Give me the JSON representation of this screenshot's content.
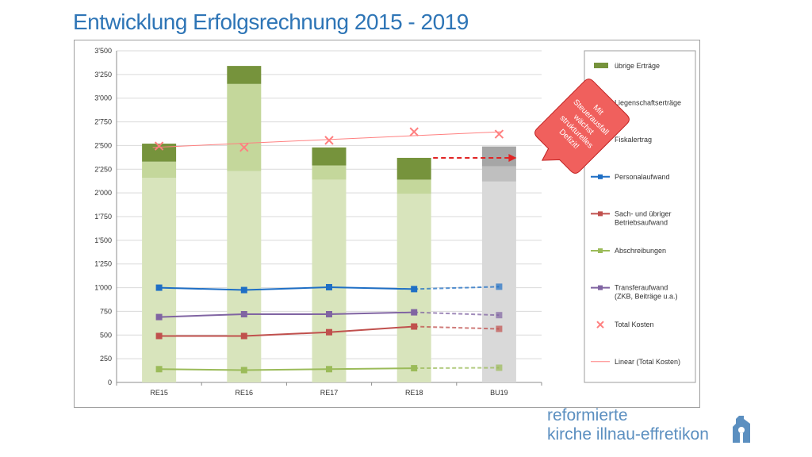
{
  "title": "Entwicklung Erfolgsrechnung 2015 - 2019",
  "brand": {
    "line1": "reformierte",
    "line2a": "kirche",
    "line2b": "illnau-effretikon"
  },
  "colors": {
    "uebrige": "#76933c",
    "liegenschaft": "#c4d79b",
    "fiskal": "#d8e4bc",
    "bu19_top": "#a6a6a6",
    "bu19_mid": "#bfbfbf",
    "bu19_base": "#d9d9d9",
    "personal": "#1f6fc5",
    "sach": "#c0504d",
    "abschr": "#9bbb59",
    "transfer": "#8064a2",
    "total": "#ff8080",
    "callout": "#f0605d",
    "arrow": "#e02424"
  },
  "chart_data": {
    "type": "bar",
    "categories": [
      "RE15",
      "RE16",
      "RE17",
      "RE18",
      "BU19"
    ],
    "ylim": [
      0,
      3500
    ],
    "yticks": [
      "0",
      "250",
      "500",
      "750",
      "1'000",
      "1'250",
      "1'500",
      "1'750",
      "2'000",
      "2'250",
      "2'500",
      "2'750",
      "3'000",
      "3'250",
      "3'500"
    ],
    "ytick_values": [
      0,
      250,
      500,
      750,
      1000,
      1250,
      1500,
      1750,
      2000,
      2250,
      2500,
      2750,
      3000,
      3250,
      3500
    ],
    "stacked_series": [
      {
        "name": "Fiskalertrag",
        "values": [
          2160,
          2230,
          2140,
          1990,
          2120
        ]
      },
      {
        "name": "Liegenschaftserträge",
        "values": [
          170,
          920,
          150,
          150,
          160
        ]
      },
      {
        "name": "übrige Erträge",
        "values": [
          190,
          190,
          190,
          230,
          210
        ]
      }
    ],
    "line_series": [
      {
        "name": "Personalaufwand",
        "values": [
          1000,
          975,
          1005,
          985,
          1010
        ]
      },
      {
        "name": "Sach- und übriger Betriebsaufwand",
        "values": [
          490,
          490,
          530,
          590,
          565
        ]
      },
      {
        "name": "Abschreibungen",
        "values": [
          140,
          130,
          140,
          150,
          155
        ]
      },
      {
        "name": "Transferaufwand (ZKB, Beiträge u.a.)",
        "values": [
          690,
          720,
          720,
          740,
          710
        ]
      }
    ],
    "total_kosten": {
      "name": "Total Kosten",
      "values": [
        2495,
        2480,
        2555,
        2645,
        2620
      ]
    },
    "trend": {
      "name": "Linear (Total Kosten)",
      "start": 2480,
      "end": 2645
    },
    "legend": [
      {
        "label": "übrige Erträge",
        "kind": "box",
        "color": "#76933c"
      },
      {
        "label": "Liegenschaftserträge",
        "kind": "box",
        "color": "#c4d79b"
      },
      {
        "label": "Fiskalertrag",
        "kind": "box",
        "color": "#d8e4bc"
      },
      {
        "label": "Personalaufwand",
        "kind": "line",
        "color": "#1f6fc5"
      },
      {
        "label": "Sach- und übriger",
        "label2": "Betriebsaufwand",
        "kind": "line",
        "color": "#c0504d"
      },
      {
        "label": "Abschreibungen",
        "kind": "line",
        "color": "#9bbb59"
      },
      {
        "label": "Transferaufwand",
        "label2": "(ZKB, Beiträge u.a.)",
        "kind": "line",
        "color": "#8064a2"
      },
      {
        "label": "Total Kosten",
        "kind": "x",
        "color": "#ff8080"
      },
      {
        "label": "Linear (Total Kosten)",
        "kind": "thin",
        "color": "#ff8080"
      }
    ],
    "legend_position": "right",
    "callout": [
      "Mit",
      "Steuerausfall",
      "wächst",
      "strukturelles",
      "Defizit!"
    ]
  }
}
